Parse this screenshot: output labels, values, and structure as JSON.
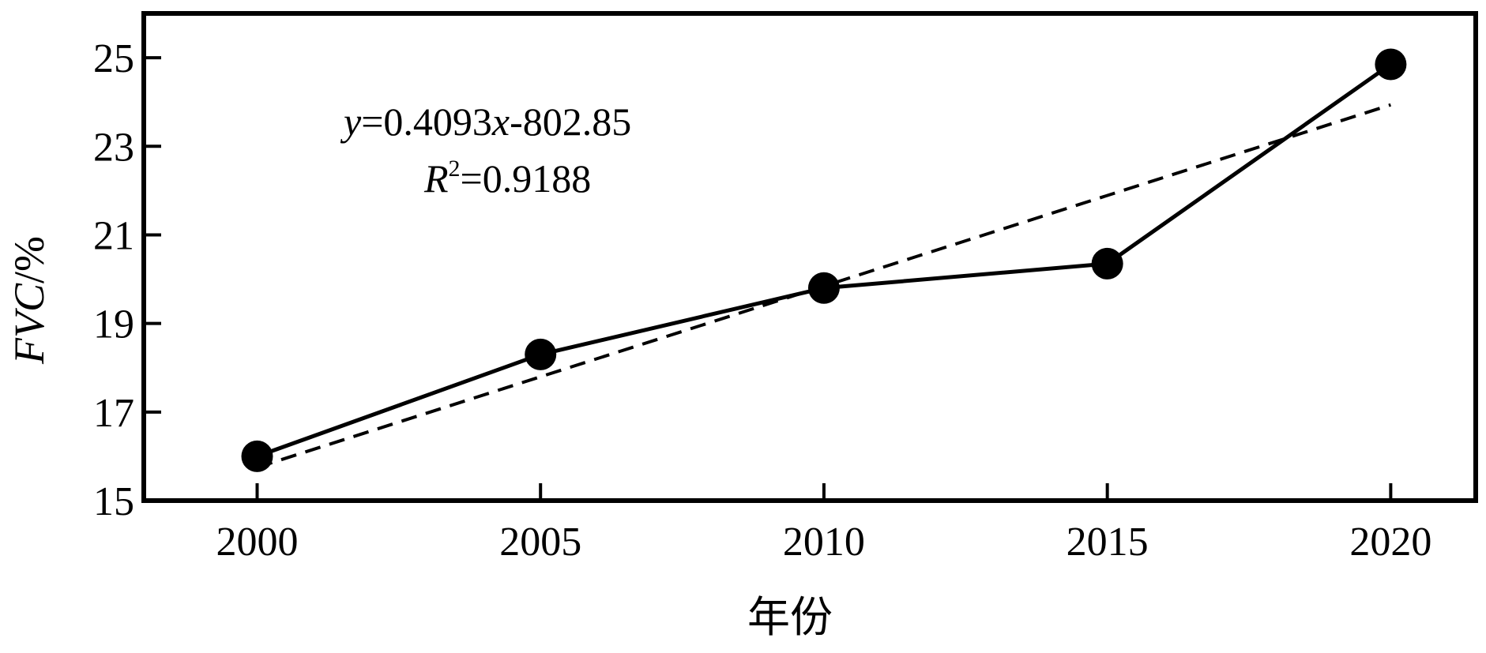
{
  "chart_data": {
    "type": "line",
    "xlabel": "年份",
    "ylabel_parts": {
      "italic": "FVC",
      "plain": "/%"
    },
    "x": [
      2000,
      2005,
      2010,
      2015,
      2020
    ],
    "series": [
      {
        "values": [
          16.0,
          18.3,
          19.8,
          20.35,
          24.85
        ],
        "style": "solid",
        "marker": "filled-circle"
      }
    ],
    "trendline": {
      "slope": 0.4093,
      "intercept": -802.85,
      "style": "dashed"
    },
    "equation": {
      "y": "y",
      "eq_rest": "=0.4093",
      "x": "x",
      "tail": "-802.85"
    },
    "r2": {
      "R": "R",
      "sup": "2",
      "rest": "=0.9188"
    },
    "xticks": [
      "2000",
      "2005",
      "2010",
      "2015",
      "2020"
    ],
    "yticks": [
      "15",
      "17",
      "19",
      "21",
      "23",
      "25"
    ],
    "xlim": [
      1998.0,
      2021.5
    ],
    "ylim": [
      15,
      26
    ],
    "grid": false,
    "colors": {
      "line": "#000000",
      "marker": "#000000",
      "frame": "#000000"
    }
  }
}
